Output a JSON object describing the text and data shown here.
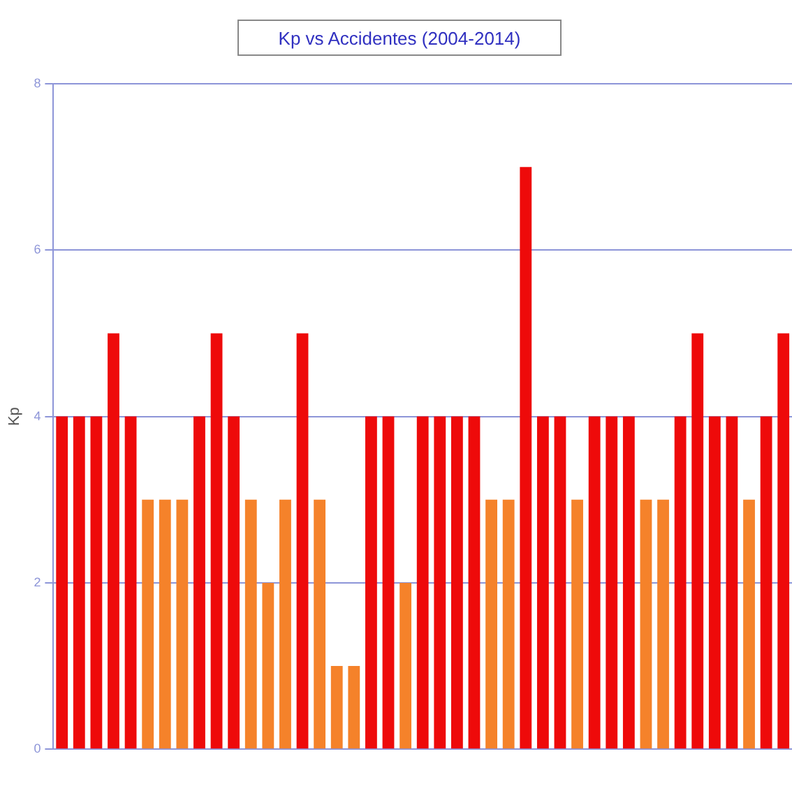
{
  "chart_data": {
    "type": "bar",
    "title": "Kp vs Accidentes  (2004-2014)",
    "ylabel": "Kp",
    "categories": [
      null,
      null,
      null,
      null,
      null,
      null,
      null,
      null,
      null,
      null,
      null,
      null,
      null,
      null,
      null,
      null,
      null,
      null,
      null,
      null,
      null,
      null,
      null,
      null,
      null,
      null,
      null,
      null,
      null,
      null,
      null,
      null,
      null,
      null,
      null,
      null,
      null,
      null,
      null,
      null,
      null,
      null,
      null
    ],
    "values": [
      4,
      4,
      4,
      5,
      4,
      3,
      3,
      3,
      4,
      5,
      4,
      3,
      2,
      3,
      5,
      3,
      1,
      1,
      4,
      4,
      2,
      4,
      4,
      4,
      4,
      3,
      3,
      7,
      4,
      4,
      3,
      4,
      4,
      4,
      3,
      3,
      4,
      5,
      4,
      4,
      3,
      4,
      5
    ],
    "colors": [
      "#ee0a0a",
      "#ee0a0a",
      "#ee0a0a",
      "#ee0a0a",
      "#ee0a0a",
      "#f5822a",
      "#f5822a",
      "#f5822a",
      "#ee0a0a",
      "#ee0a0a",
      "#ee0a0a",
      "#f5822a",
      "#f5822a",
      "#f5822a",
      "#ee0a0a",
      "#f5822a",
      "#f5822a",
      "#f5822a",
      "#ee0a0a",
      "#ee0a0a",
      "#f5822a",
      "#ee0a0a",
      "#ee0a0a",
      "#ee0a0a",
      "#ee0a0a",
      "#f5822a",
      "#f5822a",
      "#ee0a0a",
      "#ee0a0a",
      "#ee0a0a",
      "#f5822a",
      "#ee0a0a",
      "#ee0a0a",
      "#ee0a0a",
      "#f5822a",
      "#f5822a",
      "#ee0a0a",
      "#ee0a0a",
      "#ee0a0a",
      "#ee0a0a",
      "#f5822a",
      "#ee0a0a",
      "#ee0a0a"
    ],
    "ylim": [
      0,
      8
    ],
    "yticks": [
      0,
      2,
      4,
      6,
      8
    ],
    "grid": "y",
    "legend": false
  }
}
